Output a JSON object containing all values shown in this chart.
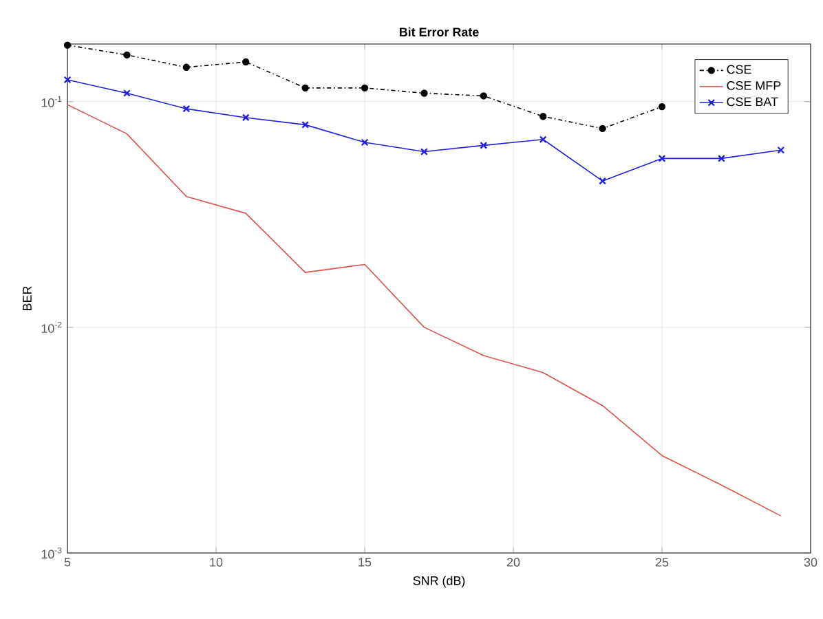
{
  "chart_data": {
    "type": "line",
    "title": "Bit Error Rate",
    "xlabel": "SNR (dB)",
    "ylabel": "BER",
    "x": [
      5,
      7,
      9,
      11,
      13,
      15,
      17,
      19,
      21,
      23,
      25,
      27,
      29
    ],
    "series": [
      {
        "name": "CSE",
        "color": "#000000",
        "marker": "circle",
        "line_style": "dashed",
        "values": [
          0.178,
          0.161,
          0.142,
          0.15,
          0.115,
          0.115,
          0.109,
          0.106,
          0.086,
          0.076,
          0.095,
          null,
          null
        ]
      },
      {
        "name": "CSE MFP",
        "color": "#d9534f",
        "marker": "none",
        "line_style": "solid",
        "values": [
          0.097,
          0.072,
          0.038,
          0.032,
          0.0175,
          0.019,
          0.01,
          0.0075,
          0.0063,
          0.0045,
          0.0027,
          0.002,
          0.00146
        ]
      },
      {
        "name": "CSE BAT",
        "color": "#2020e0",
        "marker": "cross",
        "line_style": "solid",
        "values": [
          0.125,
          0.109,
          0.093,
          0.085,
          0.079,
          0.066,
          0.06,
          0.064,
          0.068,
          0.0445,
          0.056,
          0.056,
          0.061
        ]
      }
    ],
    "log": "y",
    "xlim": [
      5,
      30
    ],
    "ylim": [
      0.001,
      0.18
    ],
    "xticks": [
      5,
      10,
      15,
      20,
      25,
      30
    ],
    "yticks": [
      {
        "value": 0.001,
        "label": "10$^{-3}$"
      },
      {
        "value": 0.01,
        "label": "10$^{-2}$"
      },
      {
        "value": 0.1,
        "label": "10$^{-1}$"
      }
    ],
    "grid": true,
    "legend": "top right"
  }
}
